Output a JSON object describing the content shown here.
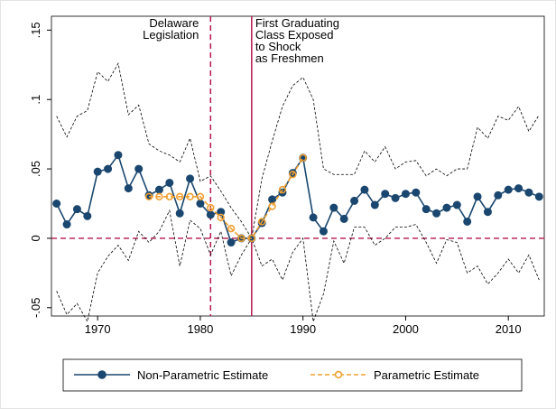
{
  "chart_data": {
    "type": "line",
    "x": [
      1966,
      1967,
      1968,
      1969,
      1970,
      1971,
      1972,
      1973,
      1974,
      1975,
      1976,
      1977,
      1978,
      1979,
      1980,
      1981,
      1982,
      1983,
      1984,
      1985,
      1986,
      1987,
      1988,
      1989,
      1990,
      1991,
      1992,
      1993,
      1994,
      1995,
      1996,
      1997,
      1998,
      1999,
      2000,
      2001,
      2002,
      2003,
      2004,
      2005,
      2006,
      2007,
      2008,
      2009,
      2010,
      2011,
      2012,
      2013
    ],
    "series": [
      {
        "color": "#000000",
        "style": "ci",
        "values": [
          0.088,
          0.073,
          0.088,
          0.092,
          0.12,
          0.113,
          0.126,
          0.089,
          0.096,
          0.068,
          0.063,
          0.06,
          0.055,
          0.072,
          0.041,
          0.045,
          0.034,
          0.022,
          0.012,
          0,
          0.043,
          0.07,
          0.095,
          0.11,
          0.116,
          0.1,
          0.05,
          0.046,
          0.046,
          0.046,
          0.063,
          0.055,
          0.066,
          0.05,
          0.055,
          0.056,
          0.045,
          0.05,
          0.045,
          0.05,
          0.05,
          0.08,
          0.072,
          0.088,
          0.085,
          0.095,
          0.077,
          0.089
        ]
      },
      {
        "color": "#000000",
        "style": "ci",
        "values": [
          -0.038,
          -0.055,
          -0.047,
          -0.06,
          -0.025,
          -0.013,
          -0.005,
          -0.016,
          0.005,
          -0.003,
          0.005,
          0.02,
          -0.02,
          0.013,
          0.007,
          -0.012,
          0.005,
          -0.027,
          -0.012,
          0,
          -0.02,
          -0.015,
          -0.03,
          -0.01,
          0,
          -0.06,
          -0.04,
          -0.002,
          -0.018,
          0.008,
          0.008,
          -0.005,
          0,
          0.008,
          0.008,
          0.01,
          -0.003,
          -0.018,
          -0.001,
          -0.003,
          -0.025,
          -0.02,
          -0.033,
          -0.025,
          -0.015,
          -0.025,
          -0.012,
          -0.03
        ]
      },
      {
        "name": "Non-Parametric Estimate",
        "color": "#1a476f",
        "style": "solid",
        "values": [
          0.025,
          0.01,
          0.021,
          0.016,
          0.048,
          0.05,
          0.06,
          0.036,
          0.05,
          0.031,
          0.035,
          0.04,
          0.018,
          0.043,
          0.025,
          0.017,
          0.019,
          -0.003,
          0,
          0,
          0.011,
          0.028,
          0.033,
          0.047,
          0.058,
          0.015,
          0.005,
          0.022,
          0.014,
          0.027,
          0.035,
          0.024,
          0.032,
          0.029,
          0.032,
          0.033,
          0.021,
          0.018,
          0.022,
          0.024,
          0.012,
          0.03,
          0.019,
          0.031,
          0.035,
          0.036,
          0.033,
          0.03
        ]
      },
      {
        "name": "Parametric Estimate",
        "color": "#f0a030",
        "style": "hollow",
        "values": [
          null,
          null,
          null,
          null,
          null,
          null,
          null,
          null,
          null,
          0.03,
          0.03,
          0.03,
          0.03,
          0.03,
          0.03,
          0.022,
          0.015,
          0.007,
          0,
          0,
          0.012,
          0.023,
          0.035,
          0.046,
          0.058,
          null,
          null,
          null,
          null,
          null,
          null,
          null,
          null,
          null,
          null,
          null,
          null,
          null,
          null,
          null,
          null,
          null,
          null,
          null,
          null,
          null,
          null,
          null
        ]
      }
    ],
    "xlim": [
      1965.5,
      2013.5
    ],
    "ylim": [
      -0.056,
      0.16
    ],
    "xticks": [
      1970,
      1980,
      1990,
      2000,
      2010
    ],
    "yticks": [
      {
        "value": 0.15,
        "label": ".15"
      },
      {
        "value": 0.1,
        "label": ".1"
      },
      {
        "value": 0.05,
        "label": ".05"
      },
      0,
      {
        "value": -0.05,
        "label": "-.05"
      }
    ],
    "hline": {
      "y": 0,
      "color": "#b5174b"
    },
    "vlines": [
      {
        "x": 1981,
        "color": "#b5174b",
        "dashed": true,
        "label": [
          "Delaware",
          "Legislation"
        ]
      },
      {
        "x": 1985,
        "color": "#b5174b",
        "dashed": false,
        "label": [
          "First Graduating",
          "Class Exposed",
          "to Shock",
          "as Freshmen"
        ]
      }
    ]
  }
}
